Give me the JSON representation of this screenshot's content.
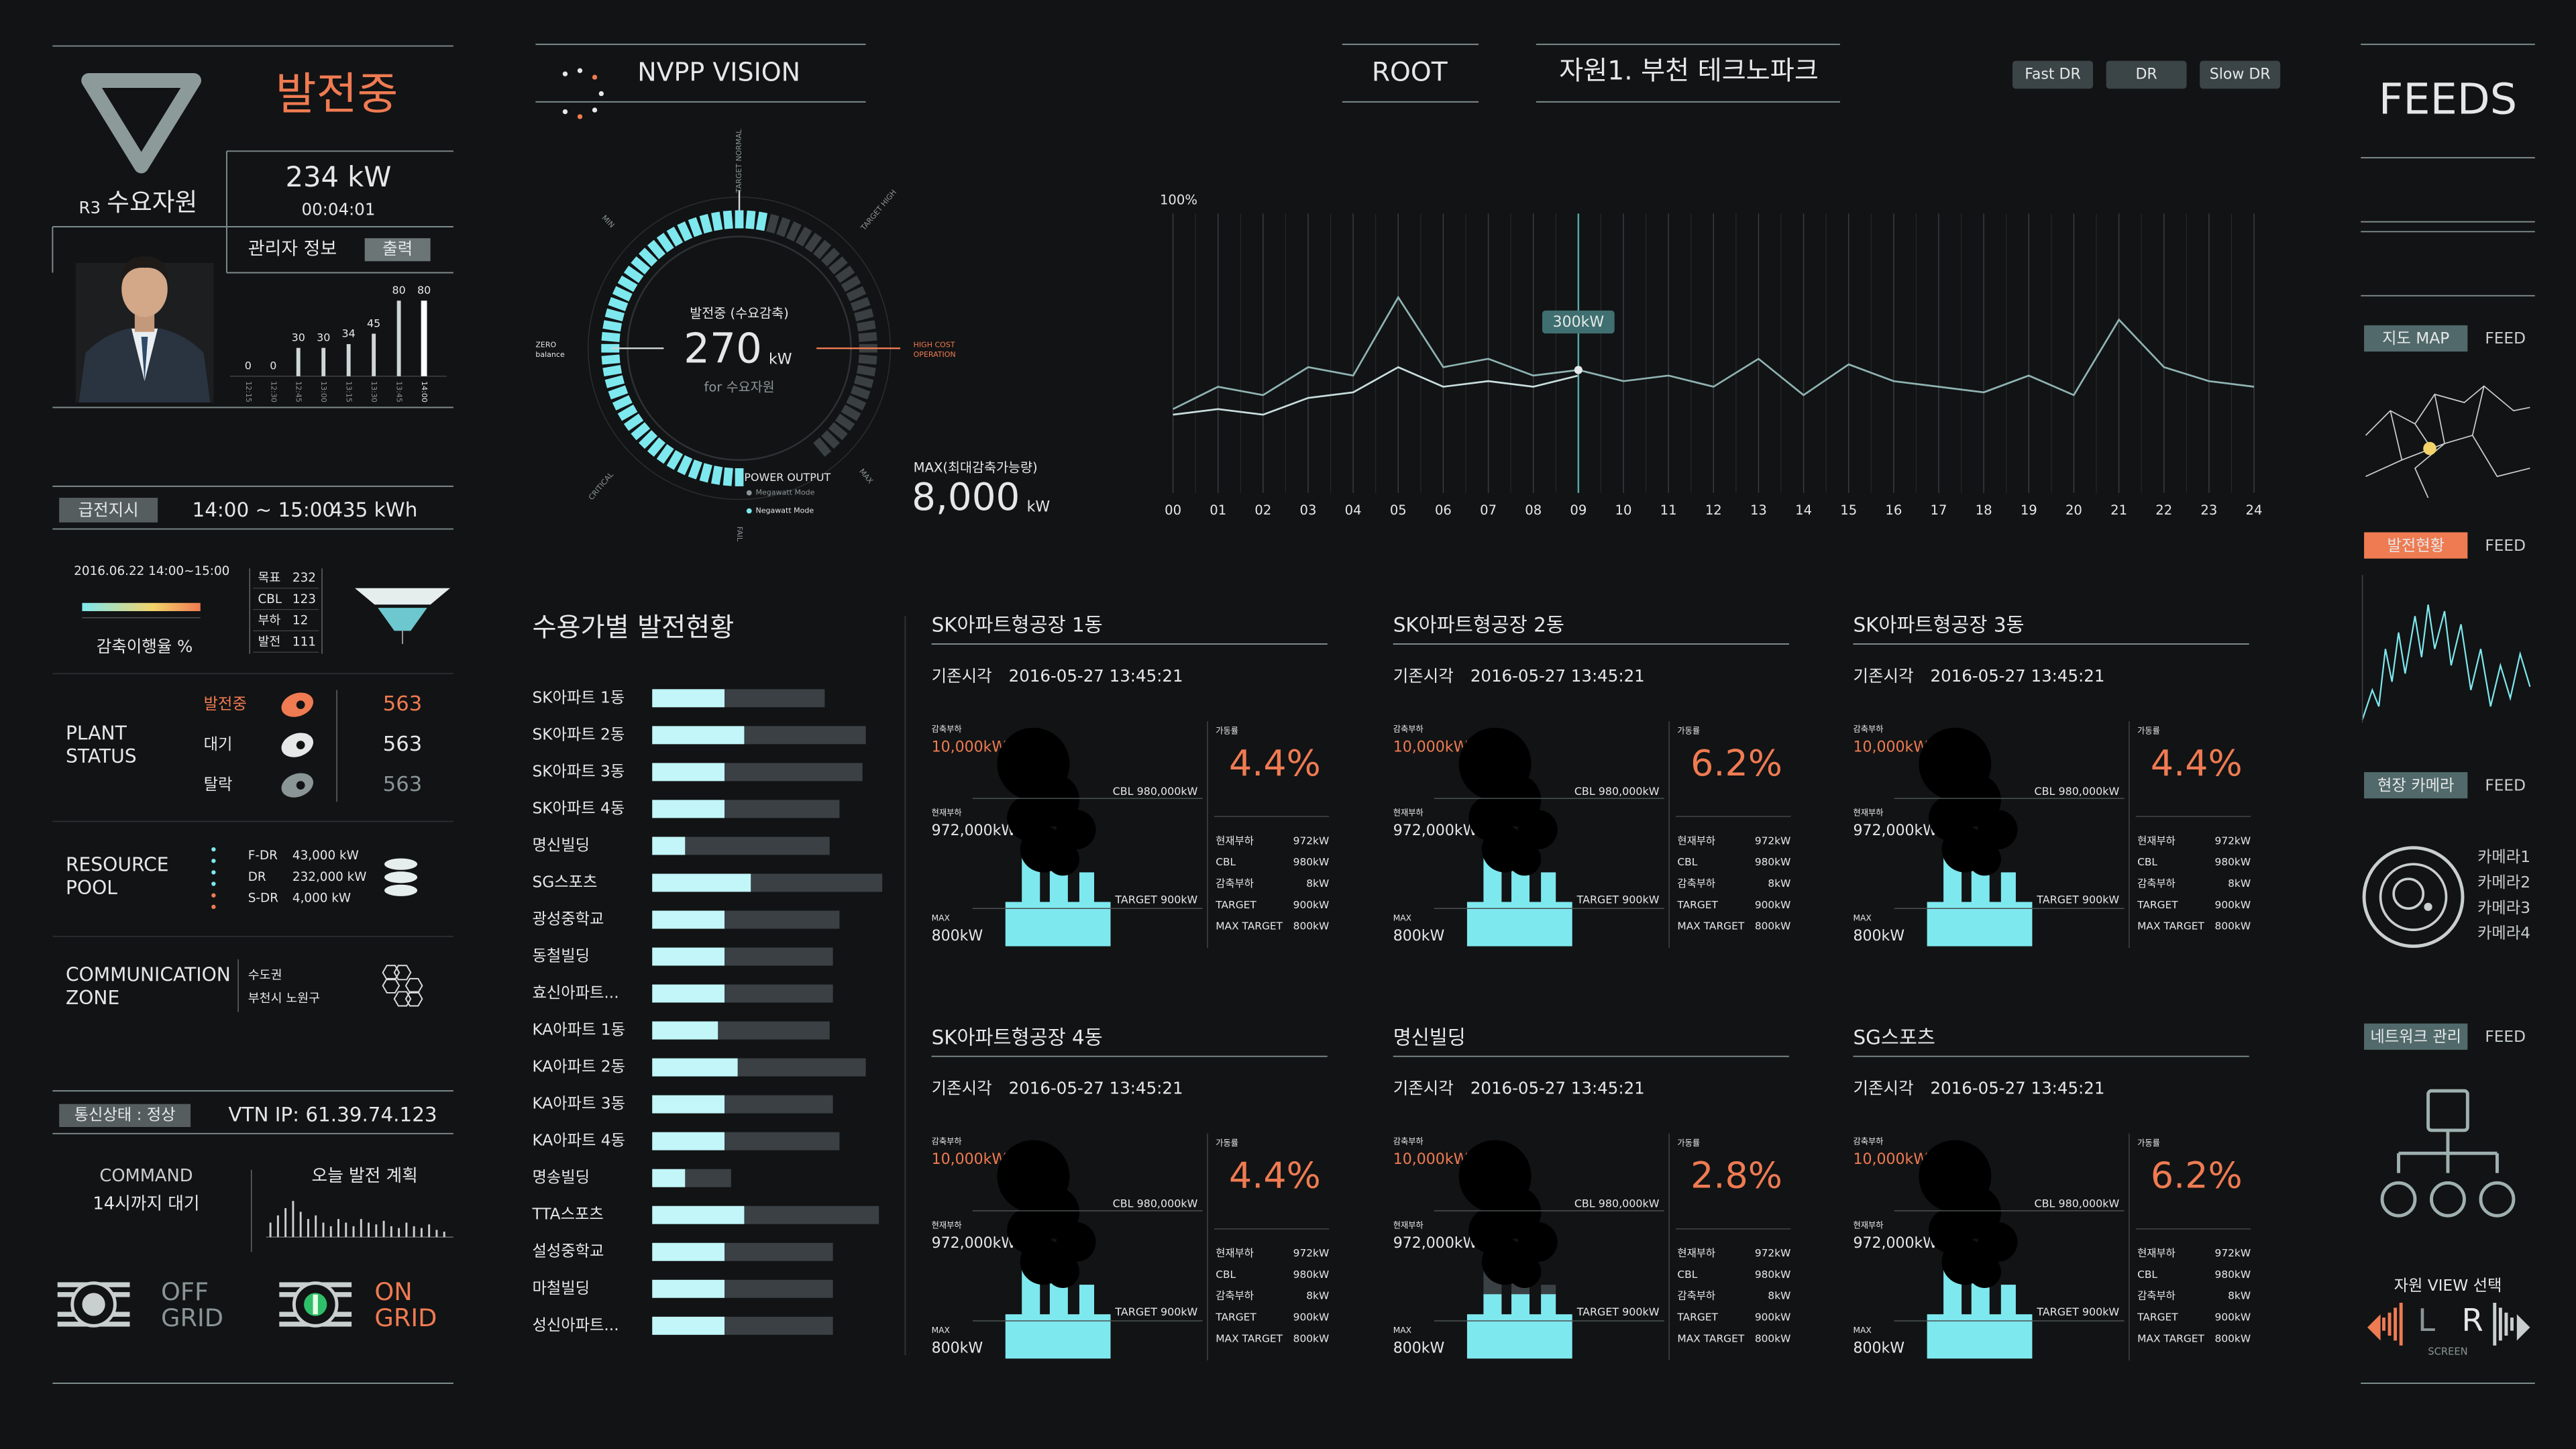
{
  "left": {
    "status": "발전중",
    "class": "R3",
    "resource": "수요자원",
    "power": "234 kW",
    "elapsed": "00:04:01",
    "manager": "관리자 정보",
    "print": "출력",
    "hourly": {
      "values": [
        0,
        0,
        30,
        30,
        34,
        45,
        80,
        80
      ],
      "labels": [
        "12:15",
        "12:30",
        "12:45",
        "13:00",
        "13:15",
        "13:30",
        "13:45",
        "14:00"
      ],
      "ylim": [
        0,
        80
      ]
    },
    "dispatch": {
      "label": "급전지시",
      "time": "14:00 ~ 15:00",
      "energy": "435 kWh"
    },
    "event": {
      "date": "2016.06.22 14:00~15:00",
      "rate_label": "감축이행율 %",
      "stats": [
        {
          "label": "목표",
          "value": 232
        },
        {
          "label": "CBL",
          "value": 123
        },
        {
          "label": "부하",
          "value": 12
        },
        {
          "label": "발전",
          "value": 111
        }
      ]
    },
    "plant": {
      "title": [
        "PLANT",
        "STATUS"
      ],
      "items": [
        {
          "label": "발전중",
          "value": 563
        },
        {
          "label": "대기",
          "value": 563
        },
        {
          "label": "탈락",
          "value": 563
        }
      ]
    },
    "pool": {
      "title": [
        "RESOURCE",
        "POOL"
      ],
      "items": [
        {
          "label": "F-DR",
          "value": "43,000 kW"
        },
        {
          "label": "DR",
          "value": "232,000 kW"
        },
        {
          "label": "S-DR",
          "value": "4,000 kW"
        }
      ]
    },
    "zone": {
      "title": [
        "COMMUNICATION",
        "ZONE"
      ],
      "region": "수도권",
      "district": "부천시 노원구"
    },
    "comm": "통신상태 : 정상",
    "vtn": "VTN IP: 61.39.74.123",
    "command": {
      "title": "COMMAND",
      "detail": "14시까지 대기"
    },
    "plan": {
      "title": "오늘 발전 계획",
      "ylim": [
        0,
        20
      ],
      "values": [
        8,
        12,
        16,
        20,
        14,
        10,
        12,
        8,
        6,
        10,
        8,
        6,
        10,
        8,
        7,
        9,
        6,
        5,
        8,
        6,
        5,
        7,
        4,
        3
      ]
    },
    "off": [
      "OFF",
      "GRID"
    ],
    "on": [
      "ON",
      "GRID"
    ]
  },
  "header": {
    "brand": "NVPP VISION",
    "root": "ROOT",
    "site": "자원1. 부천 테크노파크",
    "buttons": [
      "Fast DR",
      "DR",
      "Slow DR"
    ]
  },
  "gauge": {
    "title": "발전중 (수요감축)",
    "value": "270",
    "unit": "kW",
    "subtitle": "for 수요자원",
    "zero": [
      "ZERO",
      "balance"
    ],
    "high_cost": [
      "HIGH COST",
      "OPERATION"
    ],
    "target_normal": "TARGET NORMAL",
    "target_high": "TARGET HIGH",
    "min": "MIN",
    "critical": "CRITICAL",
    "max": "MAX",
    "fail": "FAIL",
    "output": "POWER OUTPUT",
    "modes": [
      "Megawatt Mode",
      "Negawatt Mode"
    ],
    "max_title": "MAX(최대감축가능량)",
    "max_value": "8,000",
    "max_unit": "kW"
  },
  "trend": {
    "ylabel": "100%",
    "ylim": [
      0,
      100
    ],
    "x": [
      "00",
      "01",
      "02",
      "03",
      "04",
      "05",
      "06",
      "07",
      "08",
      "09",
      "10",
      "11",
      "12",
      "13",
      "14",
      "15",
      "16",
      "17",
      "18",
      "19",
      "20",
      "21",
      "22",
      "23",
      "24"
    ],
    "cursor": "09",
    "tooltip": "300kW",
    "series": [
      {
        "color": "#8fb3b3",
        "values": [
          30,
          38,
          35,
          45,
          42,
          70,
          45,
          48,
          42,
          44,
          40,
          42,
          38,
          48,
          35,
          46,
          40,
          38,
          36,
          42,
          35,
          62,
          45,
          40,
          38
        ]
      },
      {
        "color": "#c9dede",
        "values": [
          28,
          30,
          28,
          34,
          36,
          45,
          38,
          40,
          38,
          42,
          null,
          null,
          null,
          null,
          null,
          null,
          null,
          null,
          null,
          null,
          null,
          null,
          null,
          null,
          null
        ]
      }
    ]
  },
  "usage": {
    "title": "수용가별 발전현황",
    "xlim": [
      0,
      140
    ],
    "items": [
      {
        "name": "SK아파트 1동",
        "value": 44,
        "total": 105
      },
      {
        "name": "SK아파트 2동",
        "value": 56,
        "total": 130
      },
      {
        "name": "SK아파트 3동",
        "value": 44,
        "total": 128
      },
      {
        "name": "SK아파트 4동",
        "value": 44,
        "total": 114
      },
      {
        "name": "명신빌딩",
        "value": 20,
        "total": 108
      },
      {
        "name": "SG스포츠",
        "value": 60,
        "total": 140
      },
      {
        "name": "광성중학교",
        "value": 44,
        "total": 114
      },
      {
        "name": "동철빌딩",
        "value": 44,
        "total": 110
      },
      {
        "name": "효신아파트...",
        "value": 44,
        "total": 110
      },
      {
        "name": "KA아파트 1동",
        "value": 40,
        "total": 108
      },
      {
        "name": "KA아파트 2동",
        "value": 52,
        "total": 130
      },
      {
        "name": "KA아파트 3동",
        "value": 44,
        "total": 110
      },
      {
        "name": "KA아파트 4동",
        "value": 44,
        "total": 114
      },
      {
        "name": "명송빌딩",
        "value": 20,
        "total": 48
      },
      {
        "name": "TTA스포츠",
        "value": 56,
        "total": 138
      },
      {
        "name": "설성중학교",
        "value": 44,
        "total": 110
      },
      {
        "name": "마철빌딩",
        "value": 44,
        "total": 110
      },
      {
        "name": "성신아파트...",
        "value": 44,
        "total": 110
      }
    ]
  },
  "cards": {
    "labels": {
      "base_time": "기존시각",
      "reduced": "감축부하",
      "reduced_value": "10,000kW",
      "current": "현재부하",
      "current_value": "972,000kW",
      "max": "MAX",
      "max_value": "800kW",
      "cbl": "CBL 980,000kW",
      "target": "TARGET 900kW",
      "rate": "가동률",
      "rows": [
        [
          "현재부하",
          "972kW"
        ],
        [
          "CBL",
          "980kW"
        ],
        [
          "감축부하",
          "8kW"
        ],
        [
          "TARGET",
          "900kW"
        ],
        [
          "MAX TARGET",
          "800kW"
        ]
      ]
    },
    "items": [
      {
        "name": "SK아파트형공장 1동",
        "time": "2016-05-27  13:45:21",
        "rate": 4.4,
        "rate_label": "4.4%"
      },
      {
        "name": "SK아파트형공장 2동",
        "time": "2016-05-27  13:45:21",
        "rate": 6.2,
        "rate_label": "6.2%"
      },
      {
        "name": "SK아파트형공장 3동",
        "time": "2016-05-27  13:45:21",
        "rate": 4.4,
        "rate_label": "4.4%"
      },
      {
        "name": "SK아파트형공장 4동",
        "time": "2016-05-27  13:45:21",
        "rate": 4.4,
        "rate_label": "4.4%"
      },
      {
        "name": "명신빌딩",
        "time": "2016-05-27  13:45:21",
        "rate": 2.8,
        "rate_label": "2.8%"
      },
      {
        "name": "SG스포츠",
        "time": "2016-05-27  13:45:21",
        "rate": 6.2,
        "rate_label": "6.2%"
      }
    ]
  },
  "feeds": {
    "title": "FEEDS",
    "feed": "FEED",
    "map": "지도 MAP",
    "generation": "발전현황",
    "camera": "현장 카메라",
    "cameras": [
      "카메라1",
      "카메라2",
      "카메라3",
      "카메라4"
    ],
    "network": "네트워크 관리",
    "view": "자원 VIEW 선택",
    "left": "L",
    "right": "R",
    "screen": "SCREEN"
  }
}
